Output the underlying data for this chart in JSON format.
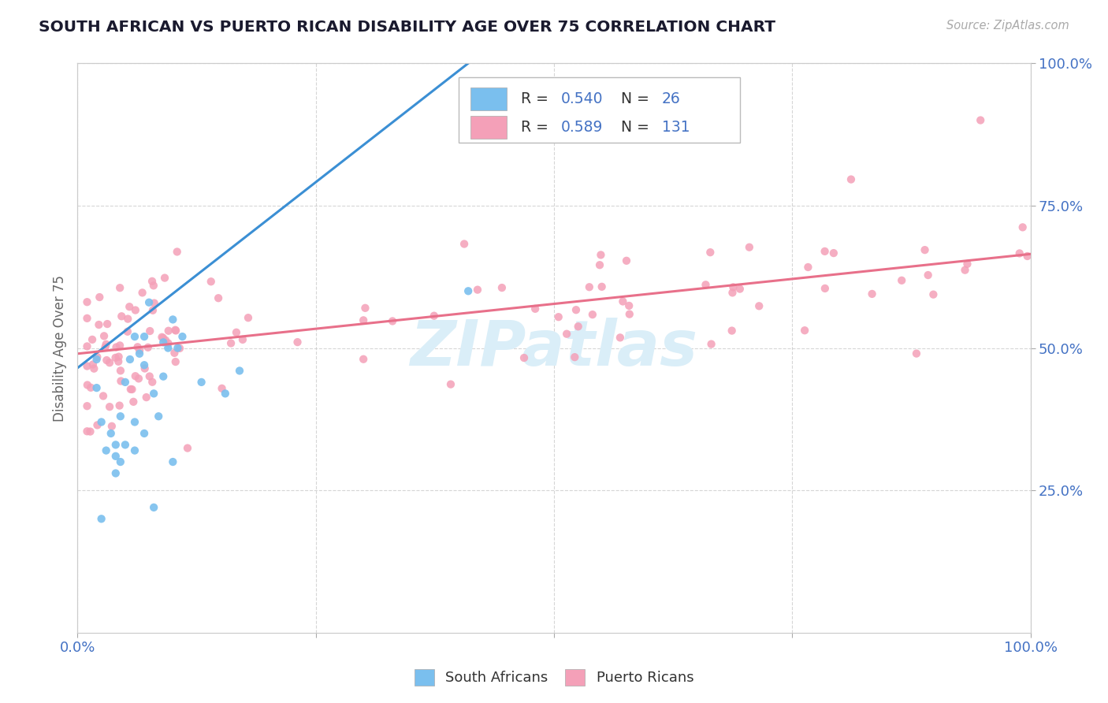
{
  "title": "SOUTH AFRICAN VS PUERTO RICAN DISABILITY AGE OVER 75 CORRELATION CHART",
  "source": "Source: ZipAtlas.com",
  "ylabel": "Disability Age Over 75",
  "color_sa": "#7abfee",
  "color_pr": "#f4a0b8",
  "color_sa_line": "#3b8fd4",
  "color_pr_line": "#e8708a",
  "color_axis_labels": "#4472c4",
  "color_ylabel": "#666666",
  "color_title": "#1a1a2e",
  "color_source": "#aaaaaa",
  "color_watermark": "#daeef8",
  "color_grid": "#cccccc",
  "background_color": "#ffffff",
  "xlim": [
    0.0,
    1.0
  ],
  "ylim": [
    0.0,
    1.0
  ],
  "sa_x": [
    0.02,
    0.065,
    0.08,
    0.08,
    0.085,
    0.09,
    0.09,
    0.095,
    0.1,
    0.1,
    0.105,
    0.11,
    0.06,
    0.07,
    0.07,
    0.075,
    0.025,
    0.04,
    0.045,
    0.05,
    0.055,
    0.06,
    0.13,
    0.155,
    0.17,
    0.41
  ],
  "sa_y": [
    0.48,
    0.49,
    0.22,
    0.42,
    0.38,
    0.45,
    0.51,
    0.5,
    0.55,
    0.3,
    0.5,
    0.52,
    0.37,
    0.47,
    0.52,
    0.58,
    0.2,
    0.31,
    0.38,
    0.44,
    0.48,
    0.52,
    0.44,
    0.42,
    0.46,
    0.6
  ],
  "sa_line_x": [
    0.0,
    0.41
  ],
  "sa_line_y": [
    0.465,
    1.0
  ],
  "pr_line_x": [
    0.0,
    1.0
  ],
  "pr_line_y": [
    0.49,
    0.665
  ],
  "r_sa": "0.540",
  "n_sa": "26",
  "r_pr": "0.589",
  "n_pr": "131"
}
